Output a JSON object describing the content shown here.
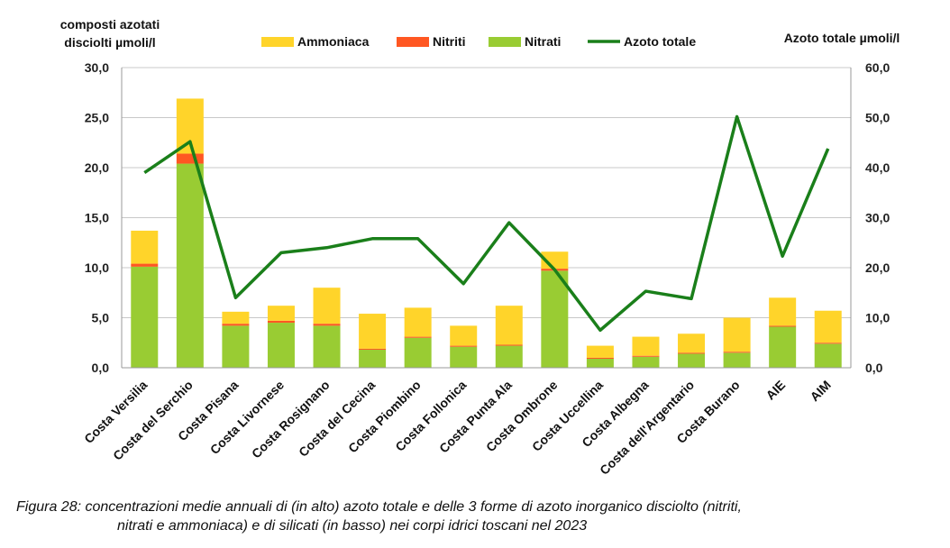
{
  "chart_data": {
    "type": "bar",
    "stacked": true,
    "categories": [
      "Costa Versilia",
      "Costa del Serchio",
      "Costa Pisana",
      "Costa Livornese",
      "Costa Rosignano",
      "Costa del Cecina",
      "Costa Piombino",
      "Costa Follonica",
      "Costa Punta Ala",
      "Costa Ombrone",
      "Costa Uccellina",
      "Costa Albegna",
      "Costa dell'Argentario",
      "Costa Burano",
      "AIE",
      "AIM"
    ],
    "series": [
      {
        "name": "Nitrati",
        "axis": "left",
        "color": "#99cc33",
        "values": [
          10.1,
          20.4,
          4.2,
          4.5,
          4.2,
          1.8,
          3.0,
          2.1,
          2.2,
          9.7,
          0.9,
          1.1,
          1.4,
          1.5,
          4.1,
          2.4
        ]
      },
      {
        "name": "Nitriti",
        "axis": "left",
        "color": "#ff5722",
        "values": [
          0.3,
          1.0,
          0.2,
          0.2,
          0.2,
          0.1,
          0.1,
          0.1,
          0.1,
          0.2,
          0.1,
          0.1,
          0.1,
          0.1,
          0.1,
          0.1
        ]
      },
      {
        "name": "Ammoniaca",
        "axis": "left",
        "color": "#ffd42a",
        "values": [
          3.3,
          5.5,
          1.2,
          1.5,
          3.6,
          3.5,
          2.9,
          2.0,
          3.9,
          1.7,
          1.2,
          1.9,
          1.9,
          3.4,
          2.8,
          3.2
        ]
      },
      {
        "name": "Azoto totale",
        "axis": "right",
        "type": "line",
        "color": "#1a7f1a",
        "values": [
          39.0,
          45.2,
          14.0,
          23.0,
          24.0,
          25.8,
          25.8,
          16.8,
          29.0,
          19.6,
          7.5,
          15.3,
          13.8,
          50.2,
          22.3,
          43.8
        ]
      }
    ],
    "left_axis": {
      "label_line1": "composti azotati",
      "label_line2": "disciolti µmoli/l",
      "ylim": [
        0,
        30
      ],
      "ticks": [
        "0,0",
        "5,0",
        "10,0",
        "15,0",
        "20,0",
        "25,0",
        "30,0"
      ]
    },
    "right_axis": {
      "label": "Azoto totale µmoli/l",
      "ylim": [
        0,
        60
      ],
      "ticks": [
        "0,0",
        "10,0",
        "20,0",
        "30,0",
        "40,0",
        "50,0",
        "60,0"
      ]
    },
    "legend": {
      "placement": "top",
      "items": [
        {
          "label": "Ammoniaca",
          "color": "#ffd42a",
          "kind": "bar"
        },
        {
          "label": "Nitriti",
          "color": "#ff5722",
          "kind": "bar"
        },
        {
          "label": "Nitrati",
          "color": "#99cc33",
          "kind": "bar"
        },
        {
          "label": "Azoto totale",
          "color": "#1a7f1a",
          "kind": "line"
        }
      ]
    },
    "grid": true
  },
  "caption": {
    "line1": "Figura 28: concentrazioni medie annuali di (in alto) azoto totale e delle 3 forme di azoto inorganico disciolto (nitriti,",
    "line2": "nitrati e ammoniaca) e di silicati (in basso) nei corpi idrici toscani nel 2023"
  }
}
